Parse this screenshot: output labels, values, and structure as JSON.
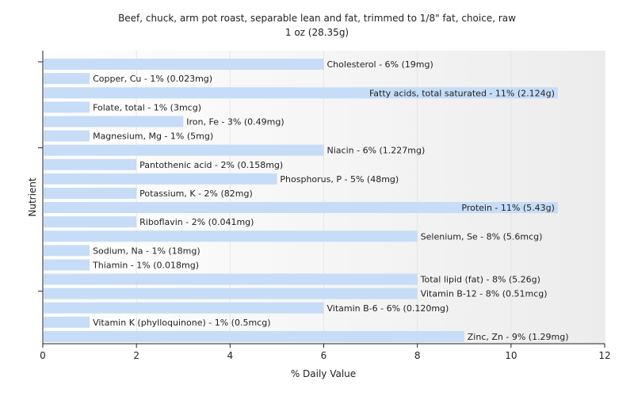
{
  "chart_data": {
    "type": "bar",
    "orientation": "horizontal",
    "title": "Beef, chuck, arm pot roast, separable lean and fat, trimmed to 1/8\" fat, choice, raw",
    "subtitle": "1 oz (28.35g)",
    "xlabel": "% Daily Value",
    "ylabel": "Nutrient",
    "xlim": [
      0,
      12
    ],
    "xticks": [
      "0",
      "2",
      "4",
      "6",
      "8",
      "10",
      "12"
    ],
    "grid": true,
    "categories": [
      "Cholesterol",
      "Copper, Cu",
      "Fatty acids, total saturated",
      "Folate, total",
      "Iron, Fe",
      "Magnesium, Mg",
      "Niacin",
      "Pantothenic acid",
      "Phosphorus, P",
      "Potassium, K",
      "Protein",
      "Riboflavin",
      "Selenium, Se",
      "Sodium, Na",
      "Thiamin",
      "Total lipid (fat)",
      "Vitamin B-12",
      "Vitamin B-6",
      "Vitamin K (phylloquinone)",
      "Zinc, Zn"
    ],
    "values": [
      6,
      1,
      11,
      1,
      3,
      1,
      6,
      2,
      5,
      2,
      11,
      2,
      8,
      1,
      1,
      8,
      8,
      6,
      1,
      9
    ],
    "labels": [
      "Cholesterol - 6% (19mg)",
      "Copper, Cu - 1% (0.023mg)",
      "Fatty acids, total saturated - 11% (2.124g)",
      "Folate, total - 1% (3mcg)",
      "Iron, Fe - 3% (0.49mg)",
      "Magnesium, Mg - 1% (5mg)",
      "Niacin - 6% (1.227mg)",
      "Pantothenic acid - 2% (0.158mg)",
      "Phosphorus, P - 5% (48mg)",
      "Potassium, K - 2% (82mg)",
      "Protein - 11% (5.43g)",
      "Riboflavin - 2% (0.041mg)",
      "Selenium, Se - 8% (5.6mcg)",
      "Sodium, Na - 1% (18mg)",
      "Thiamin - 1% (0.018mg)",
      "Total lipid (fat) - 8% (5.26g)",
      "Vitamin B-12 - 8% (0.51mcg)",
      "Vitamin B-6 - 6% (0.120mg)",
      "Vitamin K (phylloquinone) - 1% (0.5mcg)",
      "Zinc, Zn - 9% (1.29mg)"
    ],
    "colors": {
      "bar": "#c6dcf7",
      "text": "#222222",
      "grid": "#e6e6e6"
    }
  }
}
